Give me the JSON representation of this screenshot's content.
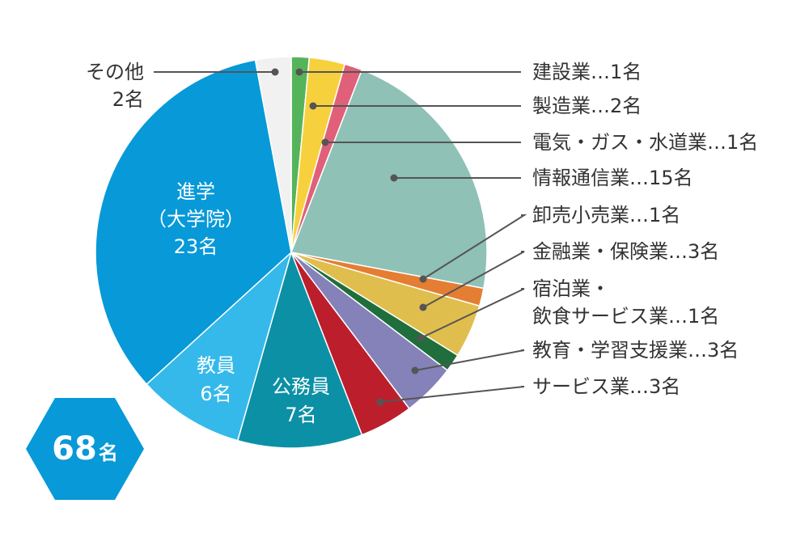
{
  "chart_data": {
    "type": "pie",
    "total_label": {
      "number": "68",
      "unit": "名"
    },
    "slices": [
      {
        "name": "建設業",
        "value": 1,
        "color": "#55b45a",
        "label_lines": [
          "建設業…1名"
        ]
      },
      {
        "name": "製造業",
        "value": 2,
        "color": "#f7d13d",
        "label_lines": [
          "製造業…2名"
        ]
      },
      {
        "name": "電気・ガス・水道業",
        "value": 1,
        "color": "#e0607a",
        "label_lines": [
          "電気・ガス・水道業…1名"
        ]
      },
      {
        "name": "情報通信業",
        "value": 15,
        "color": "#8fc1b6",
        "label_lines": [
          "情報通信業…15名"
        ]
      },
      {
        "name": "卸売小売業",
        "value": 1,
        "color": "#e47e32",
        "label_lines": [
          "卸売小売業…1名"
        ]
      },
      {
        "name": "金融業・保険業",
        "value": 3,
        "color": "#e0be4e",
        "label_lines": [
          "金融業・保険業…3名"
        ]
      },
      {
        "name": "宿泊業・飲食サービス業",
        "value": 1,
        "color": "#1f6e3c",
        "label_lines": [
          "宿泊業・",
          "飲食サービス業…1名"
        ]
      },
      {
        "name": "教育・学習支援業",
        "value": 3,
        "color": "#8581b9",
        "label_lines": [
          "教育・学習支援業…3名"
        ]
      },
      {
        "name": "サービス業",
        "value": 3,
        "color": "#bd1e2b",
        "label_lines": [
          "サービス業…3名"
        ]
      },
      {
        "name": "公務員",
        "value": 7,
        "color": "#0c90a6",
        "label_lines": [
          "公務員",
          "7名"
        ]
      },
      {
        "name": "教員",
        "value": 6,
        "color": "#35b9ea",
        "label_lines": [
          "教員",
          "6名"
        ]
      },
      {
        "name": "進学（大学院）",
        "value": 23,
        "color": "#0799d8",
        "label_lines": [
          "進学",
          "（大学院）",
          "23名"
        ]
      },
      {
        "name": "その他",
        "value": 2,
        "color": "#f1f1f1",
        "label_lines": [
          "その他",
          "2名"
        ]
      }
    ]
  }
}
